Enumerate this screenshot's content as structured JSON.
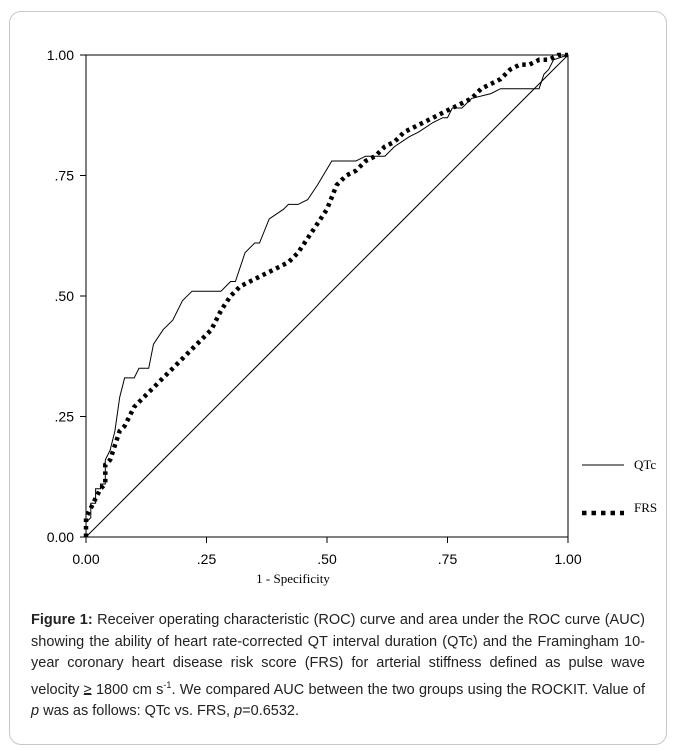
{
  "chart_data": {
    "type": "line",
    "title": "",
    "xlabel": "1 - Specificity",
    "ylabel": "",
    "xlim": [
      0,
      1
    ],
    "ylim": [
      0,
      1
    ],
    "x_ticks": [
      "0.00",
      ".25",
      ".50",
      ".75",
      "1.00"
    ],
    "y_ticks": [
      "0.00",
      ".25",
      ".50",
      ".75",
      "1.00"
    ],
    "grid": false,
    "legend_position": "right",
    "series": [
      {
        "name": "QTc",
        "style": "solid",
        "points": [
          [
            0,
            0
          ],
          [
            0,
            0.03
          ],
          [
            0.01,
            0.04
          ],
          [
            0.01,
            0.07
          ],
          [
            0.02,
            0.07
          ],
          [
            0.02,
            0.1
          ],
          [
            0.03,
            0.1
          ],
          [
            0.03,
            0.11
          ],
          [
            0.04,
            0.11
          ],
          [
            0.04,
            0.16
          ],
          [
            0.05,
            0.18
          ],
          [
            0.06,
            0.22
          ],
          [
            0.07,
            0.29
          ],
          [
            0.08,
            0.33
          ],
          [
            0.1,
            0.33
          ],
          [
            0.11,
            0.35
          ],
          [
            0.13,
            0.35
          ],
          [
            0.14,
            0.4
          ],
          [
            0.16,
            0.43
          ],
          [
            0.18,
            0.45
          ],
          [
            0.2,
            0.49
          ],
          [
            0.22,
            0.51
          ],
          [
            0.28,
            0.51
          ],
          [
            0.3,
            0.53
          ],
          [
            0.31,
            0.53
          ],
          [
            0.33,
            0.59
          ],
          [
            0.35,
            0.61
          ],
          [
            0.36,
            0.61
          ],
          [
            0.38,
            0.66
          ],
          [
            0.41,
            0.68
          ],
          [
            0.42,
            0.69
          ],
          [
            0.44,
            0.69
          ],
          [
            0.46,
            0.7
          ],
          [
            0.48,
            0.73
          ],
          [
            0.51,
            0.78
          ],
          [
            0.56,
            0.78
          ],
          [
            0.58,
            0.79
          ],
          [
            0.6,
            0.79
          ],
          [
            0.62,
            0.79
          ],
          [
            0.64,
            0.81
          ],
          [
            0.67,
            0.83
          ],
          [
            0.69,
            0.84
          ],
          [
            0.72,
            0.86
          ],
          [
            0.74,
            0.87
          ],
          [
            0.75,
            0.87
          ],
          [
            0.76,
            0.89
          ],
          [
            0.78,
            0.89
          ],
          [
            0.8,
            0.91
          ],
          [
            0.84,
            0.92
          ],
          [
            0.86,
            0.93
          ],
          [
            0.94,
            0.93
          ],
          [
            0.95,
            0.96
          ],
          [
            0.96,
            0.97
          ],
          [
            0.97,
            0.99
          ],
          [
            1,
            1
          ]
        ]
      },
      {
        "name": "FRS",
        "style": "dotted",
        "points": [
          [
            0,
            0
          ],
          [
            0,
            0.04
          ],
          [
            0.01,
            0.06
          ],
          [
            0.02,
            0.08
          ],
          [
            0.03,
            0.1
          ],
          [
            0.04,
            0.11
          ],
          [
            0.04,
            0.15
          ],
          [
            0.05,
            0.16
          ],
          [
            0.06,
            0.19
          ],
          [
            0.07,
            0.22
          ],
          [
            0.08,
            0.23
          ],
          [
            0.09,
            0.25
          ],
          [
            0.1,
            0.27
          ],
          [
            0.12,
            0.29
          ],
          [
            0.14,
            0.31
          ],
          [
            0.16,
            0.33
          ],
          [
            0.18,
            0.35
          ],
          [
            0.2,
            0.37
          ],
          [
            0.22,
            0.39
          ],
          [
            0.24,
            0.41
          ],
          [
            0.26,
            0.43
          ],
          [
            0.28,
            0.47
          ],
          [
            0.3,
            0.5
          ],
          [
            0.32,
            0.52
          ],
          [
            0.34,
            0.53
          ],
          [
            0.36,
            0.54
          ],
          [
            0.38,
            0.55
          ],
          [
            0.4,
            0.56
          ],
          [
            0.42,
            0.57
          ],
          [
            0.44,
            0.59
          ],
          [
            0.46,
            0.62
          ],
          [
            0.48,
            0.65
          ],
          [
            0.5,
            0.68
          ],
          [
            0.52,
            0.73
          ],
          [
            0.54,
            0.75
          ],
          [
            0.56,
            0.76
          ],
          [
            0.58,
            0.78
          ],
          [
            0.6,
            0.79
          ],
          [
            0.62,
            0.81
          ],
          [
            0.64,
            0.82
          ],
          [
            0.66,
            0.84
          ],
          [
            0.68,
            0.85
          ],
          [
            0.7,
            0.86
          ],
          [
            0.72,
            0.87
          ],
          [
            0.74,
            0.88
          ],
          [
            0.76,
            0.89
          ],
          [
            0.78,
            0.9
          ],
          [
            0.8,
            0.91
          ],
          [
            0.82,
            0.93
          ],
          [
            0.84,
            0.94
          ],
          [
            0.86,
            0.95
          ],
          [
            0.88,
            0.97
          ],
          [
            0.9,
            0.98
          ],
          [
            0.92,
            0.98
          ],
          [
            0.94,
            0.99
          ],
          [
            0.96,
            0.99
          ],
          [
            0.98,
            1
          ],
          [
            1,
            1
          ]
        ]
      },
      {
        "name": "",
        "style": "reference",
        "points": [
          [
            0,
            0
          ],
          [
            1,
            1
          ]
        ]
      }
    ]
  },
  "caption": {
    "label": "Figure 1:",
    "text_1": " Receiver operating characteristic (ROC) curve and area under the ROC curve (AUC) showing the ability of heart rate-corrected QT interval duration (QTc) and the Framingham 10-year coronary heart disease risk score (FRS) for arterial stiffness defined as pulse wave velocity ",
    "geq": "≥",
    "text_2": " 1800 cm s",
    "sup": "-1",
    "text_3": ". We compared AUC between the two groups using the ROCKIT. Value of ",
    "p_italic": "p",
    "text_4": " was as follows: QTc vs. FRS, ",
    "p_italic_2": "p",
    "text_5": "=0.6532."
  }
}
